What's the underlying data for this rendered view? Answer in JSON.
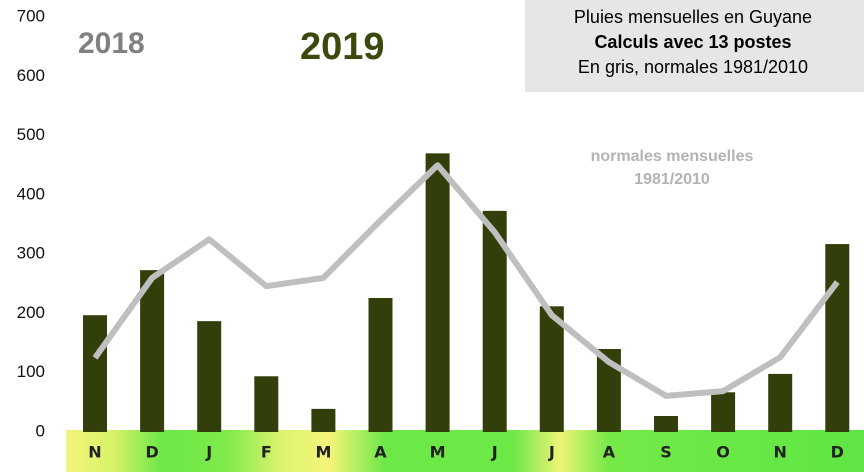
{
  "chart_data": {
    "type": "bar",
    "title": [
      "Pluies mensuelles en Guyane",
      "Calculs avec 13 postes",
      "En gris, normales 1981/2010"
    ],
    "labels": {
      "left_year": "2018",
      "right_year": "2019"
    },
    "annotation": [
      "normales mensuelles",
      "1981/2010"
    ],
    "categories": [
      "N",
      "D",
      "J",
      "F",
      "M",
      "A",
      "M",
      "J",
      "J",
      "A",
      "S",
      "O",
      "N",
      "D"
    ],
    "series": [
      {
        "type": "bar",
        "color": "#333f0a",
        "values": [
          197,
          273,
          187,
          94,
          39,
          226,
          470,
          373,
          212,
          140,
          27,
          67,
          98,
          317
        ]
      },
      {
        "type": "line",
        "color": "#bfbfbf",
        "values": [
          125,
          260,
          325,
          246,
          260,
          357,
          450,
          337,
          197,
          118,
          61,
          69,
          126,
          253
        ]
      }
    ],
    "ylim": [
      0,
      700
    ],
    "yticks": [
      0,
      100,
      200,
      300,
      400,
      500,
      600,
      700
    ],
    "grid": false
  }
}
